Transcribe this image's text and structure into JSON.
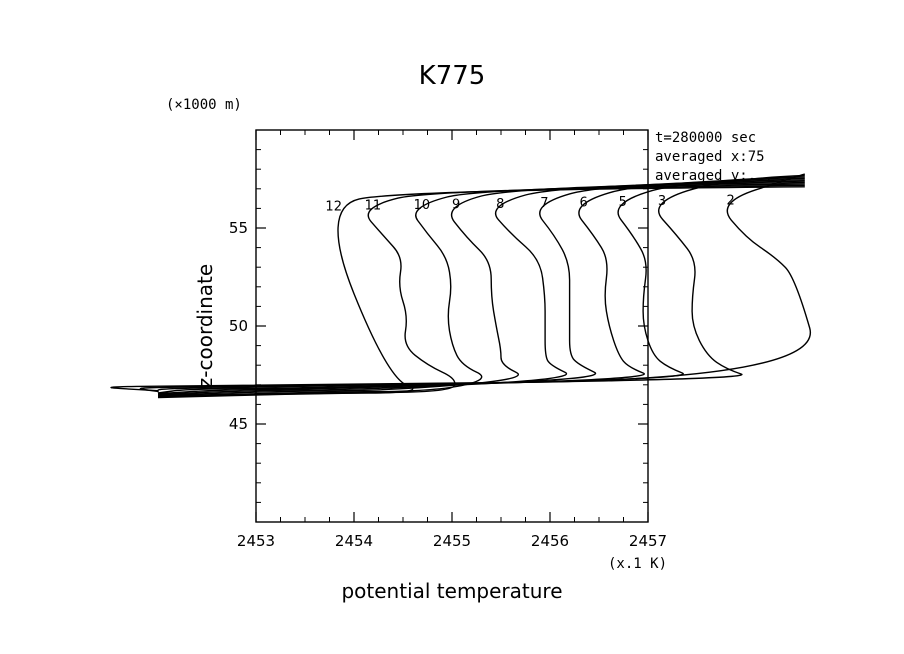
{
  "chart_data": {
    "type": "line",
    "subtype": "contour",
    "title": "K775",
    "xlabel": "potential temperature",
    "ylabel": "z-coordinate",
    "x_unit": "(x.1 K)",
    "y_unit": "(×1000 m)",
    "xlim": [
      2453,
      2457
    ],
    "ylim": [
      40,
      60
    ],
    "x_ticks": [
      2453,
      2454,
      2455,
      2456,
      2457
    ],
    "y_ticks": [
      45,
      50,
      55
    ],
    "grid": false,
    "annotations": [
      "t=280000 sec",
      "averaged  x:75",
      "averaged  y:..."
    ],
    "series": [
      {
        "name": "12",
        "label": "12",
        "top_x": 2453.65,
        "bottom_x": 2453.55,
        "wall": []
      },
      {
        "name": "11",
        "label": "11",
        "top_x": 2454.05,
        "bottom_x": 2453.8,
        "wall": [
          [
            2454.3,
            54.6
          ],
          [
            2454.5,
            53.5
          ],
          [
            2454.45,
            52.0
          ],
          [
            2454.55,
            50.5
          ],
          [
            2454.5,
            49.0
          ],
          [
            2454.75,
            48.0
          ]
        ]
      },
      {
        "name": "10",
        "label": "10",
        "top_x": 2454.55,
        "bottom_x": 2453.65,
        "wall": [
          [
            2454.75,
            54.7
          ],
          [
            2454.95,
            53.5
          ],
          [
            2455.0,
            52.0
          ],
          [
            2454.95,
            50.5
          ],
          [
            2455.0,
            49.0
          ],
          [
            2455.1,
            48.0
          ]
        ]
      },
      {
        "name": "9",
        "label": "9",
        "top_x": 2454.9,
        "bottom_x": 2453.2,
        "wall": [
          [
            2455.15,
            54.5
          ],
          [
            2455.4,
            53.3
          ],
          [
            2455.4,
            51.5
          ],
          [
            2455.45,
            50.0
          ],
          [
            2455.5,
            48.8
          ],
          [
            2455.5,
            48.0
          ]
        ]
      },
      {
        "name": "8",
        "label": "8",
        "top_x": 2455.35,
        "bottom_x": 2452.9,
        "wall": [
          [
            2455.6,
            54.7
          ],
          [
            2455.9,
            53.4
          ],
          [
            2455.95,
            51.5
          ],
          [
            2455.95,
            50.0
          ],
          [
            2455.95,
            48.5
          ],
          [
            2456.0,
            48.0
          ]
        ]
      },
      {
        "name": "7",
        "label": "7",
        "top_x": 2455.8,
        "bottom_x": 2452.6,
        "wall": [
          [
            2456.05,
            54.6
          ],
          [
            2456.2,
            53.2
          ],
          [
            2456.2,
            51.5
          ],
          [
            2456.2,
            50.0
          ],
          [
            2456.2,
            48.5
          ],
          [
            2456.3,
            48.0
          ]
        ]
      },
      {
        "name": "6",
        "label": "6",
        "top_x": 2456.2,
        "bottom_x": 2452.3,
        "wall": [
          [
            2456.45,
            54.6
          ],
          [
            2456.6,
            53.4
          ],
          [
            2456.55,
            51.5
          ],
          [
            2456.6,
            50.0
          ],
          [
            2456.7,
            48.5
          ],
          [
            2456.8,
            47.9
          ]
        ]
      },
      {
        "name": "5",
        "label": "5",
        "top_x": 2456.6,
        "bottom_x": 2452.0,
        "wall": [
          [
            2456.85,
            54.6
          ],
          [
            2457.0,
            53.3
          ],
          [
            2456.95,
            51.5
          ],
          [
            2456.95,
            50.0
          ],
          [
            2457.05,
            48.5
          ],
          [
            2457.2,
            47.9
          ]
        ]
      },
      {
        "name": "3",
        "label": "3",
        "top_x": 2457.0,
        "bottom_x": 2451.7,
        "wall": [
          [
            2457.3,
            54.6
          ],
          [
            2457.5,
            53.3
          ],
          [
            2457.45,
            51.5
          ],
          [
            2457.45,
            50.0
          ],
          [
            2457.6,
            48.5
          ],
          [
            2457.8,
            47.8
          ]
        ]
      },
      {
        "name": "2",
        "label": "2",
        "top_x": 2457.7,
        "bottom_x": 2451.3,
        "wall": [
          [
            2458.0,
            54.5
          ],
          [
            2458.3,
            53.5
          ],
          [
            2458.5,
            52.5
          ]
        ]
      }
    ]
  }
}
